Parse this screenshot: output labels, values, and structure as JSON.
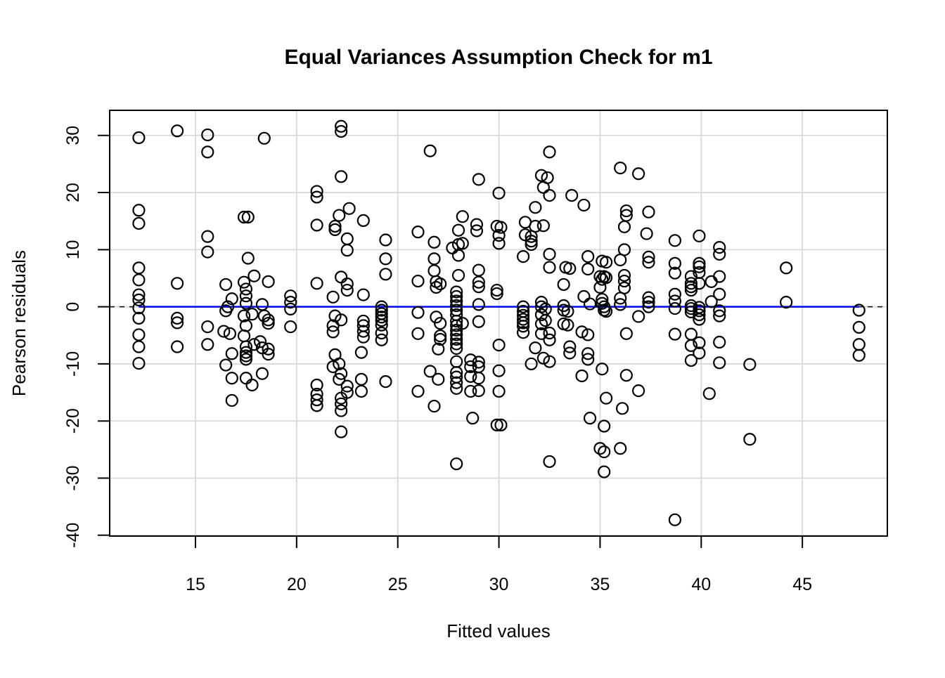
{
  "title": "Equal Variances Assumption Check for m1",
  "colors": {
    "point_stroke": "#000000",
    "smooth_line": "#0000ff",
    "zero_line": "#000000",
    "grid": "#d9d9d9",
    "box": "#000000",
    "background": "#ffffff"
  },
  "chart_data": {
    "type": "scatter",
    "title": "Equal Variances Assumption Check for m1",
    "xlabel": "Fitted values",
    "ylabel": "Pearson residuals",
    "xlim": [
      10.76,
      49.2
    ],
    "ylim": [
      -40.15,
      34.4
    ],
    "x_ticks": [
      15,
      20,
      25,
      30,
      35,
      40,
      45
    ],
    "y_ticks": [
      -40,
      -30,
      -20,
      -10,
      0,
      10,
      20,
      30
    ],
    "grid": true,
    "legend": "none",
    "marker": "open-circle",
    "reference_lines": [
      {
        "name": "zero-dashed-line",
        "y": 0,
        "style": "dashed",
        "color": "#000000",
        "x_start": 10.76,
        "x_end": 49.2
      },
      {
        "name": "smooth-blue-line",
        "y": 0,
        "style": "solid",
        "color": "#0000ff",
        "x_start": 12.2,
        "x_end": 47.8
      }
    ],
    "points": [
      [
        12.2,
        29.6
      ],
      [
        12.2,
        16.9
      ],
      [
        12.2,
        14.6
      ],
      [
        12.2,
        6.8
      ],
      [
        12.2,
        4.7
      ],
      [
        12.2,
        2.1
      ],
      [
        12.2,
        1.2
      ],
      [
        12.2,
        -0.2
      ],
      [
        12.2,
        -2.0
      ],
      [
        12.2,
        -4.9
      ],
      [
        12.2,
        -7.0
      ],
      [
        12.2,
        -9.9
      ],
      [
        14.1,
        30.8
      ],
      [
        14.1,
        4.1
      ],
      [
        14.1,
        -2.0
      ],
      [
        14.1,
        -2.8
      ],
      [
        14.1,
        -7.0
      ],
      [
        15.6,
        30.1
      ],
      [
        15.6,
        27.1
      ],
      [
        15.6,
        12.3
      ],
      [
        15.6,
        9.6
      ],
      [
        15.6,
        -3.5
      ],
      [
        15.6,
        -6.6
      ],
      [
        16.5,
        3.9
      ],
      [
        16.6,
        0.0
      ],
      [
        16.5,
        -0.7
      ],
      [
        16.8,
        1.4
      ],
      [
        16.4,
        -4.3
      ],
      [
        16.7,
        -4.7
      ],
      [
        16.8,
        -8.2
      ],
      [
        16.5,
        -10.2
      ],
      [
        16.8,
        -12.5
      ],
      [
        16.8,
        -16.4
      ],
      [
        17.4,
        15.7
      ],
      [
        17.6,
        15.7
      ],
      [
        17.6,
        8.5
      ],
      [
        17.9,
        5.4
      ],
      [
        17.4,
        4.3
      ],
      [
        17.5,
        3.1
      ],
      [
        17.5,
        1.9
      ],
      [
        17.5,
        0.6
      ],
      [
        17.8,
        -1.3
      ],
      [
        17.4,
        -1.6
      ],
      [
        17.5,
        -3.3
      ],
      [
        17.4,
        -5.1
      ],
      [
        17.5,
        -7.0
      ],
      [
        17.5,
        -8.0
      ],
      [
        17.5,
        -8.6
      ],
      [
        17.5,
        -9.2
      ],
      [
        17.9,
        -6.6
      ],
      [
        17.5,
        -12.5
      ],
      [
        17.8,
        -13.7
      ],
      [
        18.4,
        29.5
      ],
      [
        18.6,
        4.4
      ],
      [
        18.3,
        0.4
      ],
      [
        18.4,
        -1.6
      ],
      [
        18.6,
        -2.3
      ],
      [
        18.6,
        -2.9
      ],
      [
        18.2,
        -6.1
      ],
      [
        18.3,
        -7.2
      ],
      [
        18.6,
        -7.4
      ],
      [
        18.6,
        -8.3
      ],
      [
        18.3,
        -11.7
      ],
      [
        19.7,
        1.9
      ],
      [
        19.7,
        0.8
      ],
      [
        19.7,
        -0.4
      ],
      [
        19.7,
        -3.5
      ],
      [
        21.0,
        20.2
      ],
      [
        21.0,
        19.2
      ],
      [
        21.0,
        14.3
      ],
      [
        21.0,
        4.1
      ],
      [
        21.0,
        -13.7
      ],
      [
        21.0,
        -15.3
      ],
      [
        21.0,
        -16.3
      ],
      [
        21.0,
        -17.3
      ],
      [
        22.2,
        31.6
      ],
      [
        22.2,
        30.7
      ],
      [
        22.2,
        22.8
      ],
      [
        22.6,
        17.2
      ],
      [
        22.1,
        16.0
      ],
      [
        21.9,
        14.1
      ],
      [
        21.9,
        13.5
      ],
      [
        22.5,
        11.9
      ],
      [
        22.5,
        9.9
      ],
      [
        22.2,
        5.2
      ],
      [
        22.5,
        4.0
      ],
      [
        22.5,
        2.9
      ],
      [
        21.8,
        1.7
      ],
      [
        21.9,
        -1.6
      ],
      [
        22.2,
        -2.3
      ],
      [
        21.8,
        -3.3
      ],
      [
        21.8,
        -4.4
      ],
      [
        21.9,
        -8.4
      ],
      [
        22.1,
        -10.0
      ],
      [
        21.8,
        -10.5
      ],
      [
        22.2,
        -11.7
      ],
      [
        22.1,
        -12.7
      ],
      [
        22.5,
        -13.9
      ],
      [
        22.5,
        -15.0
      ],
      [
        22.2,
        -16.0
      ],
      [
        22.2,
        -17.0
      ],
      [
        22.2,
        -18.2
      ],
      [
        22.2,
        -21.9
      ],
      [
        23.3,
        15.1
      ],
      [
        23.3,
        2.1
      ],
      [
        23.3,
        -2.5
      ],
      [
        23.3,
        -3.3
      ],
      [
        23.3,
        -4.3
      ],
      [
        23.3,
        -5.3
      ],
      [
        23.2,
        -8.0
      ],
      [
        23.2,
        -12.7
      ],
      [
        23.2,
        -14.8
      ],
      [
        24.4,
        11.7
      ],
      [
        24.4,
        8.4
      ],
      [
        24.4,
        5.7
      ],
      [
        24.2,
        0.0
      ],
      [
        24.2,
        -0.6
      ],
      [
        24.2,
        -1.2
      ],
      [
        24.2,
        -1.8
      ],
      [
        24.2,
        -2.4
      ],
      [
        24.2,
        -3.2
      ],
      [
        24.2,
        -4.6
      ],
      [
        24.2,
        -5.8
      ],
      [
        24.4,
        -13.1
      ],
      [
        26.0,
        13.1
      ],
      [
        26.0,
        4.5
      ],
      [
        26.0,
        -1.0
      ],
      [
        26.0,
        -4.7
      ],
      [
        26.0,
        -14.8
      ],
      [
        26.6,
        27.3
      ],
      [
        26.8,
        11.3
      ],
      [
        26.8,
        8.4
      ],
      [
        26.8,
        6.3
      ],
      [
        26.9,
        4.4
      ],
      [
        27.1,
        4.0
      ],
      [
        26.9,
        3.4
      ],
      [
        26.9,
        -1.8
      ],
      [
        27.1,
        -2.9
      ],
      [
        27.1,
        -5.1
      ],
      [
        27.1,
        -5.7
      ],
      [
        27.0,
        -7.4
      ],
      [
        26.6,
        -11.3
      ],
      [
        27.0,
        -12.7
      ],
      [
        26.8,
        -17.4
      ],
      [
        28.2,
        15.8
      ],
      [
        28.0,
        13.4
      ],
      [
        28.2,
        11.1
      ],
      [
        28.0,
        10.9
      ],
      [
        27.7,
        10.3
      ],
      [
        28.0,
        9.0
      ],
      [
        28.0,
        5.5
      ],
      [
        27.9,
        2.6
      ],
      [
        27.9,
        1.8
      ],
      [
        27.9,
        1.0
      ],
      [
        27.9,
        0.2
      ],
      [
        27.9,
        -0.6
      ],
      [
        27.9,
        -1.4
      ],
      [
        27.9,
        -2.5
      ],
      [
        28.2,
        -2.9
      ],
      [
        27.9,
        -3.3
      ],
      [
        27.9,
        -4.1
      ],
      [
        27.9,
        -4.9
      ],
      [
        27.9,
        -5.7
      ],
      [
        27.9,
        -6.5
      ],
      [
        27.9,
        -7.3
      ],
      [
        27.9,
        -9.6
      ],
      [
        27.9,
        -11.5
      ],
      [
        27.9,
        -12.3
      ],
      [
        27.9,
        -13.3
      ],
      [
        27.9,
        -14.3
      ],
      [
        27.9,
        -27.5
      ],
      [
        29.0,
        22.3
      ],
      [
        28.9,
        14.4
      ],
      [
        28.9,
        13.3
      ],
      [
        29.0,
        6.4
      ],
      [
        29.0,
        4.3
      ],
      [
        29.0,
        3.5
      ],
      [
        29.0,
        0.4
      ],
      [
        29.0,
        -2.6
      ],
      [
        28.6,
        -9.3
      ],
      [
        29.0,
        -9.7
      ],
      [
        28.6,
        -10.5
      ],
      [
        29.0,
        -10.5
      ],
      [
        28.6,
        -12.2
      ],
      [
        29.0,
        -12.5
      ],
      [
        28.6,
        -14.8
      ],
      [
        29.0,
        -14.7
      ],
      [
        28.7,
        -19.5
      ],
      [
        30.0,
        19.9
      ],
      [
        29.9,
        14.1
      ],
      [
        30.1,
        13.9
      ],
      [
        30.0,
        12.5
      ],
      [
        30.0,
        11.1
      ],
      [
        29.9,
        2.9
      ],
      [
        29.9,
        2.3
      ],
      [
        30.0,
        -6.7
      ],
      [
        30.0,
        -11.2
      ],
      [
        30.0,
        -14.8
      ],
      [
        29.9,
        -20.7
      ],
      [
        30.1,
        -20.7
      ],
      [
        31.8,
        17.4
      ],
      [
        31.3,
        14.8
      ],
      [
        31.8,
        14.1
      ],
      [
        31.3,
        12.6
      ],
      [
        31.6,
        12.3
      ],
      [
        31.6,
        11.5
      ],
      [
        31.6,
        10.9
      ],
      [
        31.2,
        8.8
      ],
      [
        31.2,
        0.0
      ],
      [
        31.2,
        -0.8
      ],
      [
        31.2,
        -1.5
      ],
      [
        31.2,
        -2.2
      ],
      [
        31.2,
        -2.8
      ],
      [
        31.2,
        -3.4
      ],
      [
        31.2,
        -4.5
      ],
      [
        31.8,
        -7.2
      ],
      [
        31.6,
        -10.0
      ],
      [
        32.5,
        27.1
      ],
      [
        32.1,
        23.0
      ],
      [
        32.4,
        22.6
      ],
      [
        32.2,
        20.9
      ],
      [
        32.5,
        19.5
      ],
      [
        32.2,
        14.2
      ],
      [
        32.5,
        9.2
      ],
      [
        32.5,
        6.9
      ],
      [
        32.1,
        0.8
      ],
      [
        32.1,
        0.0
      ],
      [
        32.3,
        -0.4
      ],
      [
        32.1,
        -1.4
      ],
      [
        32.3,
        -2.4
      ],
      [
        32.1,
        -3.0
      ],
      [
        32.1,
        -4.7
      ],
      [
        32.5,
        -4.6
      ],
      [
        32.5,
        -5.8
      ],
      [
        32.2,
        -9.0
      ],
      [
        32.5,
        -9.6
      ],
      [
        32.5,
        -27.1
      ],
      [
        33.6,
        19.5
      ],
      [
        33.3,
        6.9
      ],
      [
        33.5,
        6.7
      ],
      [
        33.2,
        3.9
      ],
      [
        33.2,
        0.2
      ],
      [
        33.2,
        -0.6
      ],
      [
        33.4,
        -0.8
      ],
      [
        33.2,
        -3.0
      ],
      [
        33.4,
        -3.2
      ],
      [
        33.5,
        -7.0
      ],
      [
        33.5,
        -8.1
      ],
      [
        34.2,
        17.8
      ],
      [
        34.4,
        8.8
      ],
      [
        34.4,
        6.6
      ],
      [
        34.2,
        1.8
      ],
      [
        34.5,
        0.5
      ],
      [
        34.1,
        -4.4
      ],
      [
        34.4,
        -4.9
      ],
      [
        34.4,
        -8.2
      ],
      [
        34.4,
        -9.2
      ],
      [
        34.1,
        -12.1
      ],
      [
        34.5,
        -19.5
      ],
      [
        35.1,
        8.0
      ],
      [
        35.3,
        7.8
      ],
      [
        35.0,
        5.3
      ],
      [
        35.2,
        5.3
      ],
      [
        35.3,
        5.1
      ],
      [
        35.1,
        4.8
      ],
      [
        35.0,
        3.4
      ],
      [
        35.1,
        1.3
      ],
      [
        35.1,
        0.6
      ],
      [
        35.2,
        0.0
      ],
      [
        35.2,
        -0.6
      ],
      [
        35.3,
        -0.8
      ],
      [
        35.1,
        -10.9
      ],
      [
        35.3,
        -16.0
      ],
      [
        35.2,
        -20.9
      ],
      [
        35.0,
        -24.8
      ],
      [
        35.2,
        -25.4
      ],
      [
        35.2,
        -28.9
      ],
      [
        36.0,
        24.3
      ],
      [
        36.3,
        16.8
      ],
      [
        36.3,
        16.0
      ],
      [
        36.2,
        14.0
      ],
      [
        36.2,
        10.0
      ],
      [
        36.0,
        8.2
      ],
      [
        36.2,
        5.5
      ],
      [
        36.2,
        4.5
      ],
      [
        36.2,
        3.3
      ],
      [
        36.0,
        1.5
      ],
      [
        36.0,
        0.4
      ],
      [
        36.3,
        -4.7
      ],
      [
        36.3,
        -12.0
      ],
      [
        36.1,
        -17.8
      ],
      [
        36.0,
        -24.8
      ],
      [
        36.9,
        23.3
      ],
      [
        37.4,
        16.6
      ],
      [
        37.3,
        12.8
      ],
      [
        37.4,
        8.7
      ],
      [
        37.4,
        7.8
      ],
      [
        37.4,
        1.6
      ],
      [
        37.4,
        0.8
      ],
      [
        37.4,
        0.0
      ],
      [
        36.9,
        -1.7
      ],
      [
        36.9,
        -14.7
      ],
      [
        38.7,
        11.6
      ],
      [
        38.7,
        7.6
      ],
      [
        38.7,
        5.9
      ],
      [
        38.7,
        2.2
      ],
      [
        38.7,
        1.0
      ],
      [
        38.7,
        -0.3
      ],
      [
        38.7,
        -4.8
      ],
      [
        38.7,
        -37.3
      ],
      [
        39.9,
        12.4
      ],
      [
        39.9,
        7.6
      ],
      [
        39.9,
        7.0
      ],
      [
        39.9,
        6.0
      ],
      [
        39.5,
        5.3
      ],
      [
        39.5,
        4.1
      ],
      [
        39.9,
        4.1
      ],
      [
        39.5,
        3.5
      ],
      [
        39.5,
        2.9
      ],
      [
        39.5,
        0.2
      ],
      [
        39.5,
        -0.3
      ],
      [
        39.5,
        -0.9
      ],
      [
        39.9,
        -0.1
      ],
      [
        39.9,
        -0.7
      ],
      [
        39.9,
        -1.4
      ],
      [
        39.9,
        -2.2
      ],
      [
        39.5,
        -4.8
      ],
      [
        39.5,
        -6.8
      ],
      [
        39.9,
        -6.3
      ],
      [
        39.9,
        -8.1
      ],
      [
        39.5,
        -9.4
      ],
      [
        40.9,
        10.4
      ],
      [
        40.9,
        9.2
      ],
      [
        40.9,
        5.3
      ],
      [
        40.5,
        4.4
      ],
      [
        40.9,
        2.2
      ],
      [
        40.5,
        0.9
      ],
      [
        40.9,
        -0.7
      ],
      [
        40.9,
        -1.6
      ],
      [
        40.9,
        -6.2
      ],
      [
        40.9,
        -9.8
      ],
      [
        40.4,
        -15.2
      ],
      [
        42.4,
        -10.1
      ],
      [
        42.4,
        -23.2
      ],
      [
        44.2,
        6.8
      ],
      [
        44.2,
        0.8
      ],
      [
        47.8,
        -0.6
      ],
      [
        47.8,
        -3.6
      ],
      [
        47.8,
        -6.6
      ],
      [
        47.8,
        -8.5
      ]
    ]
  }
}
